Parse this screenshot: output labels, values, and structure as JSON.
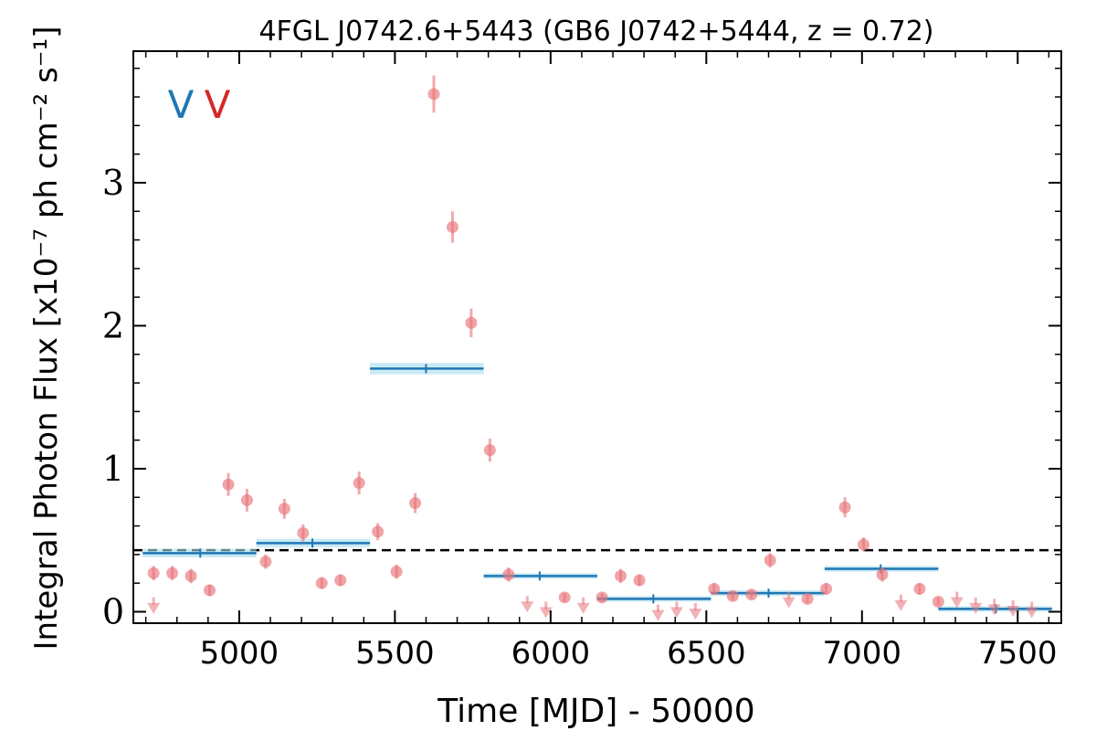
{
  "chart_data": {
    "type": "scatter",
    "title": "4FGL J0742.6+5443 (GB6 J0742+5444, z = 0.72)",
    "xlabel": "Time [MJD] - 50000",
    "ylabel": "Integral Photon Flux [x10⁻⁷ ph cm⁻² s⁻¹]",
    "xlim": [
      4660,
      7640
    ],
    "ylim": [
      -0.08,
      3.92
    ],
    "xticks": [
      5000,
      5500,
      6000,
      6500,
      7000,
      7500
    ],
    "yticks": [
      0,
      1,
      2,
      3
    ],
    "xtick_labels": [
      "5000",
      "5500",
      "6000",
      "6500",
      "7000",
      "7500"
    ],
    "ytick_labels": [
      "0",
      "1",
      "2",
      "3"
    ],
    "grid": false,
    "markers": [
      {
        "label": "V",
        "color": "#1f77b4"
      },
      {
        "label": "V",
        "color": "#d62728"
      }
    ],
    "mean_flux": 0.43,
    "series": [
      {
        "type": "binned-flux",
        "color": "#1f77b4",
        "bins": [
          {
            "x_start": 4690,
            "x_end": 5055,
            "x_mid": 4875,
            "y": 0.41,
            "err": 0.03
          },
          {
            "x_start": 5055,
            "x_end": 5420,
            "x_mid": 5235,
            "y": 0.48,
            "err": 0.03
          },
          {
            "x_start": 5420,
            "x_end": 5785,
            "x_mid": 5600,
            "y": 1.7,
            "err": 0.04
          },
          {
            "x_start": 5785,
            "x_end": 6150,
            "x_mid": 5965,
            "y": 0.25,
            "err": 0.02
          },
          {
            "x_start": 6150,
            "x_end": 6515,
            "x_mid": 6330,
            "y": 0.09,
            "err": 0.015
          },
          {
            "x_start": 6515,
            "x_end": 6880,
            "x_mid": 6700,
            "y": 0.13,
            "err": 0.02
          },
          {
            "x_start": 6880,
            "x_end": 7245,
            "x_mid": 7060,
            "y": 0.3,
            "err": 0.02
          },
          {
            "x_start": 7245,
            "x_end": 7610,
            "x_mid": 7430,
            "y": 0.02,
            "err": 0.01
          }
        ]
      },
      {
        "type": "monthly-flux",
        "color": "#e8737a",
        "points": [
          {
            "x": 4725,
            "y": 0.27,
            "err": 0.05
          },
          {
            "x": 4785,
            "y": 0.27,
            "err": 0.05
          },
          {
            "x": 4845,
            "y": 0.25,
            "err": 0.05
          },
          {
            "x": 4905,
            "y": 0.15,
            "err": 0.04
          },
          {
            "x": 4965,
            "y": 0.89,
            "err": 0.08
          },
          {
            "x": 5025,
            "y": 0.78,
            "err": 0.08
          },
          {
            "x": 5085,
            "y": 0.35,
            "err": 0.05
          },
          {
            "x": 5145,
            "y": 0.72,
            "err": 0.07
          },
          {
            "x": 5205,
            "y": 0.55,
            "err": 0.06
          },
          {
            "x": 5265,
            "y": 0.2,
            "err": 0.04
          },
          {
            "x": 5325,
            "y": 0.22,
            "err": 0.04
          },
          {
            "x": 5385,
            "y": 0.9,
            "err": 0.08
          },
          {
            "x": 5445,
            "y": 0.56,
            "err": 0.06
          },
          {
            "x": 5505,
            "y": 0.28,
            "err": 0.05
          },
          {
            "x": 5565,
            "y": 0.76,
            "err": 0.07
          },
          {
            "x": 5625,
            "y": 3.62,
            "err": 0.13
          },
          {
            "x": 5685,
            "y": 2.69,
            "err": 0.11
          },
          {
            "x": 5745,
            "y": 2.02,
            "err": 0.1
          },
          {
            "x": 5805,
            "y": 1.13,
            "err": 0.08
          },
          {
            "x": 5865,
            "y": 0.26,
            "err": 0.05
          },
          {
            "x": 6045,
            "y": 0.1,
            "err": 0.03
          },
          {
            "x": 6165,
            "y": 0.1,
            "err": 0.03
          },
          {
            "x": 6225,
            "y": 0.25,
            "err": 0.05
          },
          {
            "x": 6285,
            "y": 0.22,
            "err": 0.04
          },
          {
            "x": 6525,
            "y": 0.16,
            "err": 0.04
          },
          {
            "x": 6585,
            "y": 0.11,
            "err": 0.03
          },
          {
            "x": 6645,
            "y": 0.12,
            "err": 0.03
          },
          {
            "x": 6705,
            "y": 0.36,
            "err": 0.05
          },
          {
            "x": 6825,
            "y": 0.09,
            "err": 0.03
          },
          {
            "x": 6885,
            "y": 0.16,
            "err": 0.04
          },
          {
            "x": 6945,
            "y": 0.73,
            "err": 0.07
          },
          {
            "x": 7005,
            "y": 0.47,
            "err": 0.05
          },
          {
            "x": 7065,
            "y": 0.26,
            "err": 0.05
          },
          {
            "x": 7185,
            "y": 0.16,
            "err": 0.04
          },
          {
            "x": 7245,
            "y": 0.07,
            "err": 0.03
          }
        ],
        "upper_limits": [
          {
            "x": 4725,
            "y": 0.1
          },
          {
            "x": 5925,
            "y": 0.11
          },
          {
            "x": 5985,
            "y": 0.07
          },
          {
            "x": 6105,
            "y": 0.1
          },
          {
            "x": 6345,
            "y": 0.05
          },
          {
            "x": 6405,
            "y": 0.07
          },
          {
            "x": 6465,
            "y": 0.06
          },
          {
            "x": 6765,
            "y": 0.14
          },
          {
            "x": 7125,
            "y": 0.12
          },
          {
            "x": 7305,
            "y": 0.14
          },
          {
            "x": 7365,
            "y": 0.1
          },
          {
            "x": 7425,
            "y": 0.09
          },
          {
            "x": 7485,
            "y": 0.08
          },
          {
            "x": 7545,
            "y": 0.07
          }
        ]
      }
    ]
  }
}
